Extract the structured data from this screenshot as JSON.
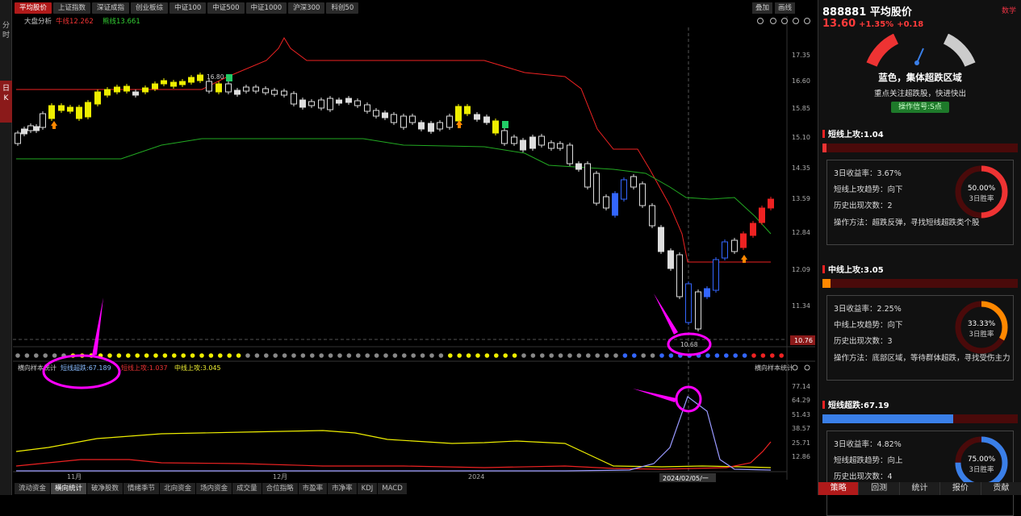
{
  "left_bar": [
    "分",
    "时",
    "日",
    "K"
  ],
  "top_tabs": [
    "平均股价",
    "上证指数",
    "深证成指",
    "创业板综",
    "中证100",
    "中证500",
    "中证1000",
    "沪深300",
    "科创50"
  ],
  "top_ctrls": [
    "叠加",
    "画线"
  ],
  "main_panel": {
    "label": "大盘分析",
    "short_line": "牛线12.262",
    "mid_line": "熊线13.661",
    "price_high": "16.80",
    "price_low": "10.68",
    "current_marker": "10.76",
    "date_marker": "2024/02/05/一"
  },
  "y_axis": [
    "17.35",
    "16.60",
    "15.85",
    "15.10",
    "14.35",
    "13.59",
    "12.84",
    "12.09",
    "11.34"
  ],
  "x_axis": [
    "11月",
    "12月",
    "2024"
  ],
  "sub_panel": {
    "title": "横向样本统计",
    "right_title": "横向样本统计",
    "short": "短线超跌:67.189",
    "short_up": "短线上攻:1.037",
    "mid_up": "中线上攻:3.045",
    "y_axis": [
      "77.14",
      "64.29",
      "51.43",
      "38.57",
      "25.71",
      "12.86"
    ]
  },
  "bottom_tabs": [
    "流动资金",
    "横向统计",
    "破净股数",
    "情绪季节",
    "北向资金",
    "场内资金",
    "成交量",
    "合位指略",
    "市盈率",
    "市净率",
    "KDJ",
    "MACD"
  ],
  "right_panel": {
    "code": "888881",
    "name": "平均股价",
    "price": "13.60",
    "pct": "+1.35%",
    "chg": "+0.18",
    "tag": "数学",
    "gauge_title": "蓝色，集体超跌区域",
    "gauge_sub": "重点关注超跌股，快进快出",
    "signal": "操作信号:S点",
    "sections": [
      {
        "title": "短线上攻:1.04",
        "fill": 0,
        "color": "#e33",
        "lines": [
          "3日收益率：3.67%",
          "短线上攻趋势：向下",
          "历史出现次数：2",
          "操作方法：超跌反弹，寻找短线超跌类个股"
        ],
        "pct": "50.00%",
        "ratio": 0.5,
        "ring_label": "3日胜率"
      },
      {
        "title": "中线上攻:3.05",
        "fill": 0.04,
        "color": "#f80",
        "lines": [
          "3日收益率：2.25%",
          "中线上攻趋势：向下",
          "历史出现次数：3",
          "操作方法：底部区域，等待群体超跌，寻找受伤主力"
        ],
        "pct": "33.33%",
        "ratio": 0.3333,
        "ring_label": "3日胜率"
      },
      {
        "title": "短线超跌:67.19",
        "fill": 0.67,
        "color": "#3a7fe8",
        "lines": [
          "3日收益率：4.82%",
          "短线超跌趋势：向上",
          "历史出现次数：4"
        ],
        "pct": "75.00%",
        "ratio": 0.75,
        "ring_label": "3日胜率"
      }
    ],
    "tabs": [
      "策略",
      "回测",
      "统计",
      "报价",
      "贡献"
    ]
  }
}
